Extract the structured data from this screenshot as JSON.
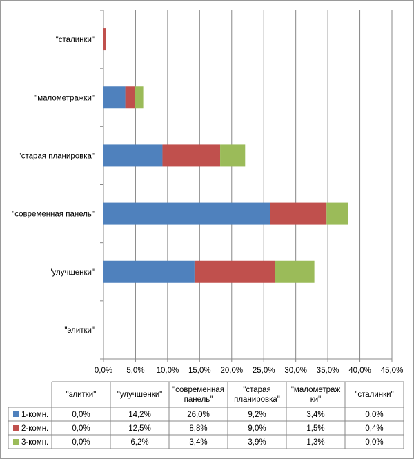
{
  "chart_data": {
    "type": "bar",
    "stacked": true,
    "orientation": "horizontal",
    "categories": [
      "\"элитки\"",
      "\"улучшенки\"",
      "\"современная панель\"",
      "\"старая планировка\"",
      "\"малометражки\"",
      "\"сталинки\""
    ],
    "table_headers": [
      [
        "\"элитки\""
      ],
      [
        "\"улучшенки\""
      ],
      [
        "\"современная",
        "панель\""
      ],
      [
        "\"старая",
        "планировка\""
      ],
      [
        "\"малометраж",
        "ки\""
      ],
      [
        "\"сталинки\""
      ]
    ],
    "series": [
      {
        "name": "1-комн.",
        "color": "#4F81BD",
        "values": [
          0.0,
          14.2,
          26.0,
          9.2,
          3.4,
          0.0
        ],
        "labels": [
          "0,0%",
          "14,2%",
          "26,0%",
          "9,2%",
          "3,4%",
          "0,0%"
        ]
      },
      {
        "name": "2-комн.",
        "color": "#C0504D",
        "values": [
          0.0,
          12.5,
          8.8,
          9.0,
          1.5,
          0.4
        ],
        "labels": [
          "0,0%",
          "12,5%",
          "8,8%",
          "9,0%",
          "1,5%",
          "0,4%"
        ]
      },
      {
        "name": "3-комн.",
        "color": "#9BBB59",
        "values": [
          0.0,
          6.2,
          3.4,
          3.9,
          1.3,
          0.0
        ],
        "labels": [
          "0,0%",
          "6,2%",
          "3,4%",
          "3,9%",
          "1,3%",
          "0,0%"
        ]
      }
    ],
    "xlim": [
      0,
      45
    ],
    "ticks": [
      0,
      5,
      10,
      15,
      20,
      25,
      30,
      35,
      40,
      45
    ],
    "tick_labels": [
      "0,0%",
      "5,0%",
      "10,0%",
      "15,0%",
      "20,0%",
      "25,0%",
      "30,0%",
      "35,0%",
      "40,0%",
      "45,0%"
    ],
    "grid": true,
    "legend": "data-table"
  }
}
